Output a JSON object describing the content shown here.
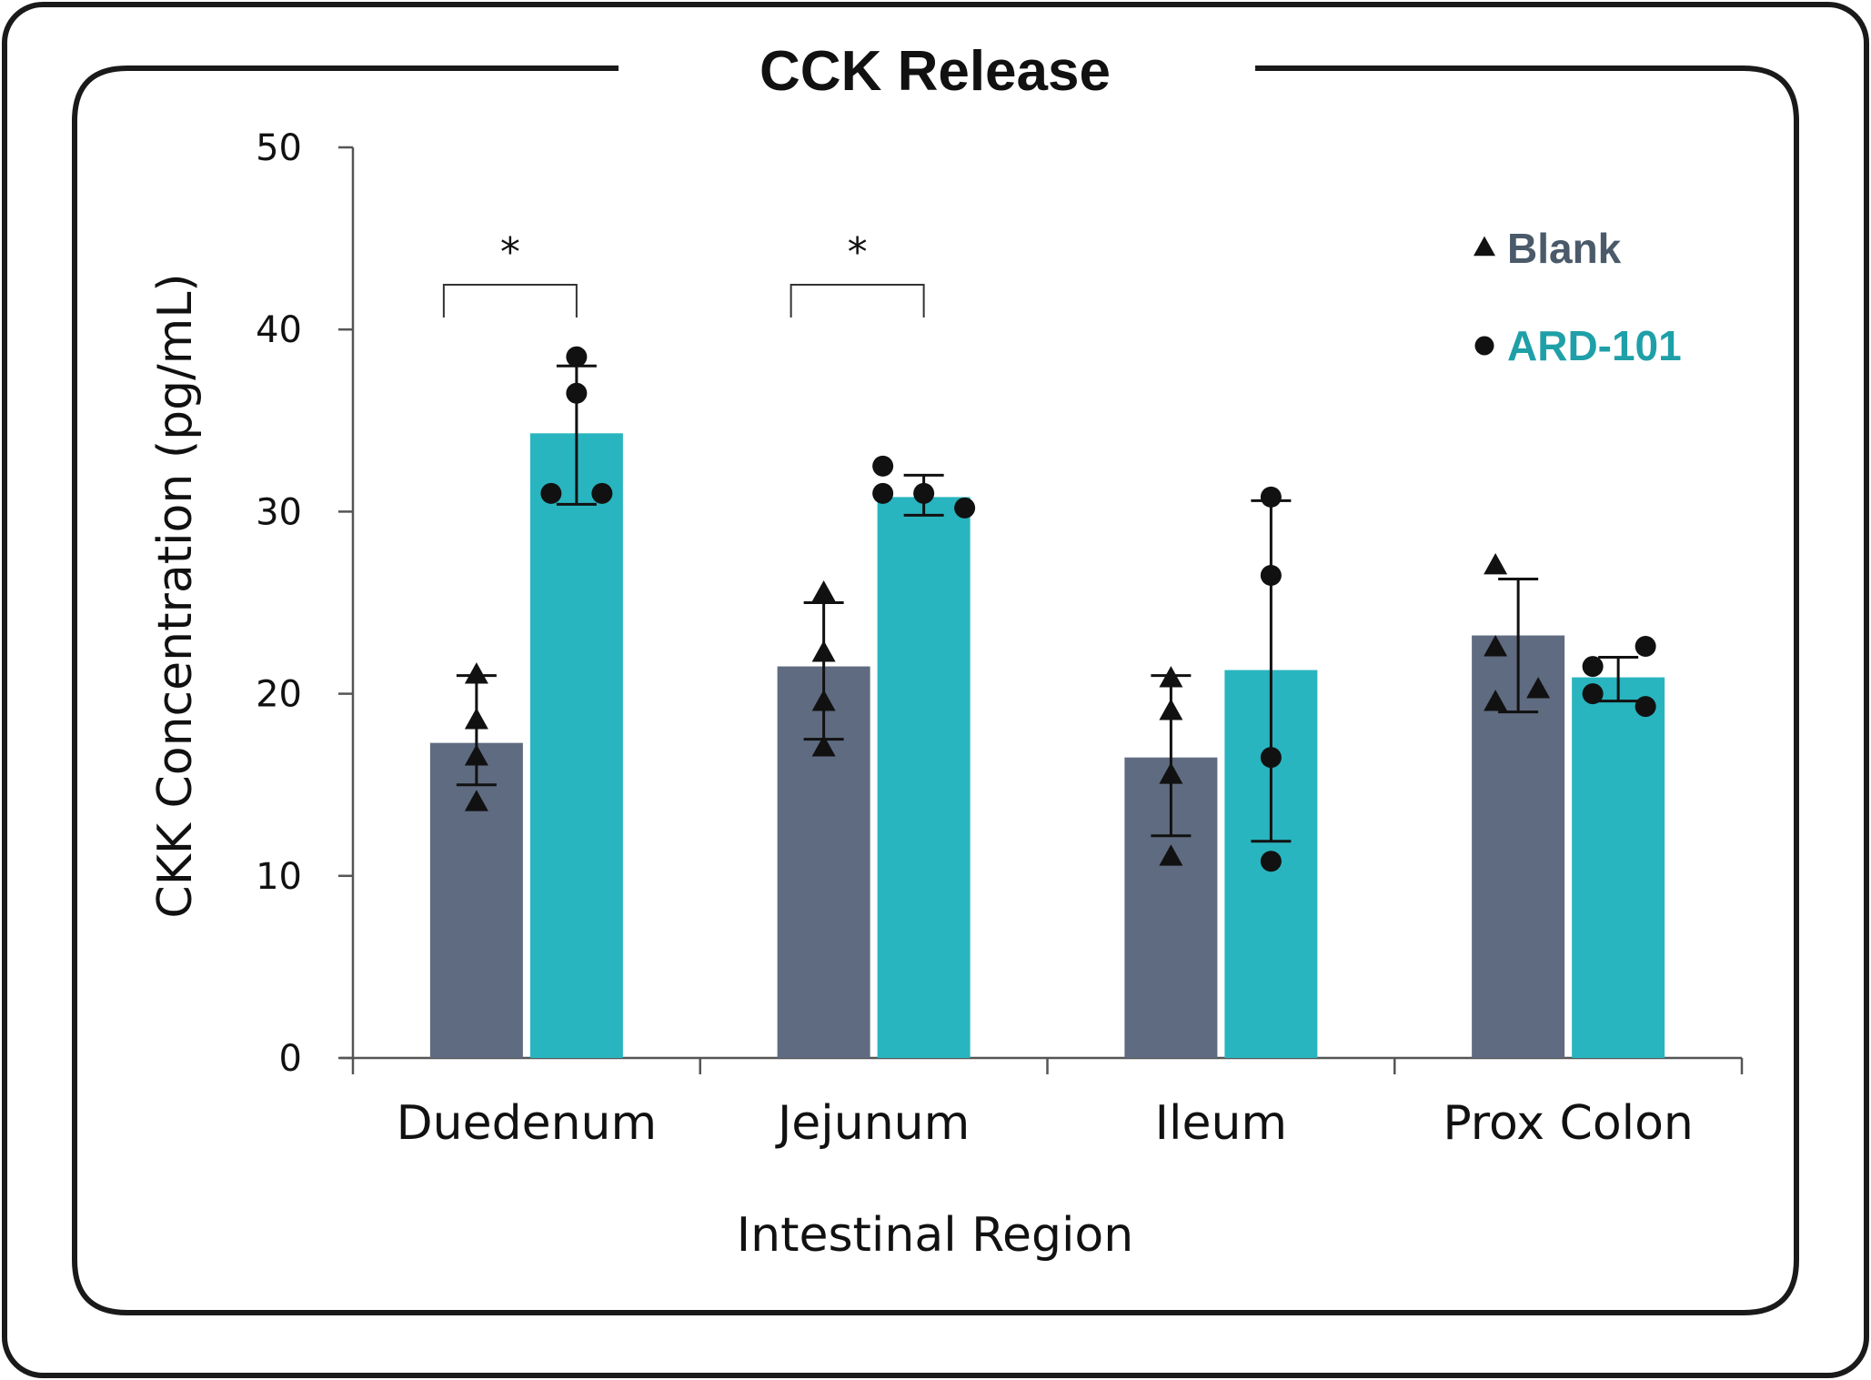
{
  "chart_data": {
    "type": "bar",
    "title": "CCK Release",
    "xlabel": "Intestinal Region",
    "ylabel": "CKK Concentration (pg/mL)",
    "ylim": [
      0,
      50
    ],
    "yticks": [
      0,
      10,
      20,
      30,
      40,
      50
    ],
    "categories": [
      "Duedenum",
      "Jejunum",
      "Ileum",
      "Prox Colon"
    ],
    "series": [
      {
        "name": "Blank",
        "marker": "triangle",
        "color": "#5f6b80",
        "label_color": "#4a5a6a",
        "values": [
          17.3,
          21.5,
          16.5,
          23.2
        ],
        "error_low": [
          15.0,
          17.5,
          12.2,
          19.0
        ],
        "error_high": [
          21.0,
          25.0,
          21.0,
          26.3
        ],
        "points": [
          [
            21.0,
            18.5,
            16.5,
            14.0
          ],
          [
            25.5,
            22.2,
            19.5,
            17.0
          ],
          [
            20.8,
            19.0,
            15.5,
            11.0
          ],
          [
            27.0,
            22.5,
            20.2,
            19.5
          ]
        ]
      },
      {
        "name": "ARD-101",
        "marker": "circle",
        "color": "#29b5bf",
        "label_color": "#1fa0a8",
        "values": [
          34.3,
          30.8,
          21.3,
          20.9
        ],
        "error_low": [
          30.4,
          29.8,
          11.9,
          19.6
        ],
        "error_high": [
          38.0,
          32.0,
          30.6,
          22.0
        ],
        "points": [
          [
            38.5,
            36.5,
            31.0,
            31.0
          ],
          [
            32.5,
            31.0,
            30.2,
            31.0
          ],
          [
            30.8,
            26.5,
            16.5,
            10.8
          ],
          [
            22.6,
            21.5,
            20.0,
            19.3
          ]
        ]
      }
    ],
    "significance": [
      {
        "category": "Duedenum",
        "label": "*"
      },
      {
        "category": "Jejunum",
        "label": "*"
      }
    ],
    "legend_position": "top-right",
    "grid": false
  }
}
